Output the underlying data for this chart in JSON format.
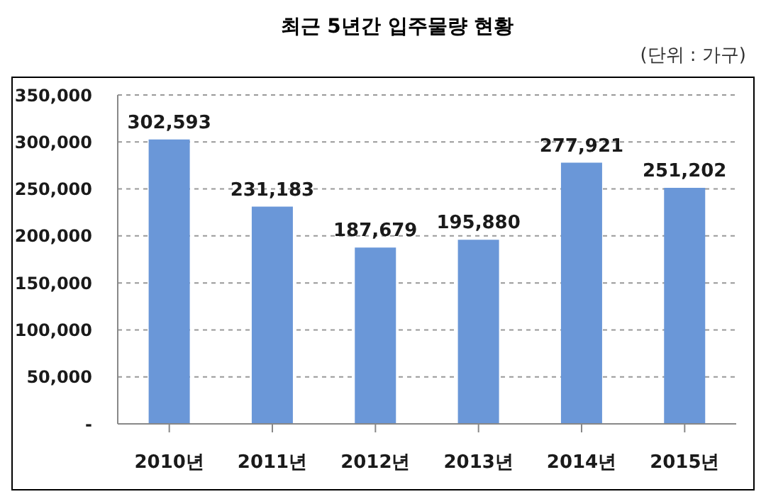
{
  "chart_data": {
    "type": "bar",
    "title": "최근 5년간 입주물량 현황",
    "annotations": [
      "(단위 : 가구)"
    ],
    "categories": [
      "2010년",
      "2011년",
      "2012년",
      "2013년",
      "2014년",
      "2015년"
    ],
    "series": [
      {
        "color": "#6a97d8",
        "values": [
          302593,
          231183,
          187679,
          195880,
          277921,
          251202
        ],
        "value_labels": [
          "302,593",
          "231,183",
          "187,679",
          "195,880",
          "277,921",
          "251,202"
        ]
      }
    ],
    "ylim": [
      0,
      350000
    ],
    "yticks": [
      {
        "value": 0,
        "label": "-"
      },
      {
        "value": 50000,
        "label": "50,000"
      },
      {
        "value": 100000,
        "label": "100,000"
      },
      {
        "value": 150000,
        "label": "150,000"
      },
      {
        "value": 200000,
        "label": "200,000"
      },
      {
        "value": 250000,
        "label": "250,000"
      },
      {
        "value": 300000,
        "label": "300,000"
      },
      {
        "value": 350000,
        "label": "350,000"
      }
    ],
    "grid": "y",
    "legend": false
  }
}
